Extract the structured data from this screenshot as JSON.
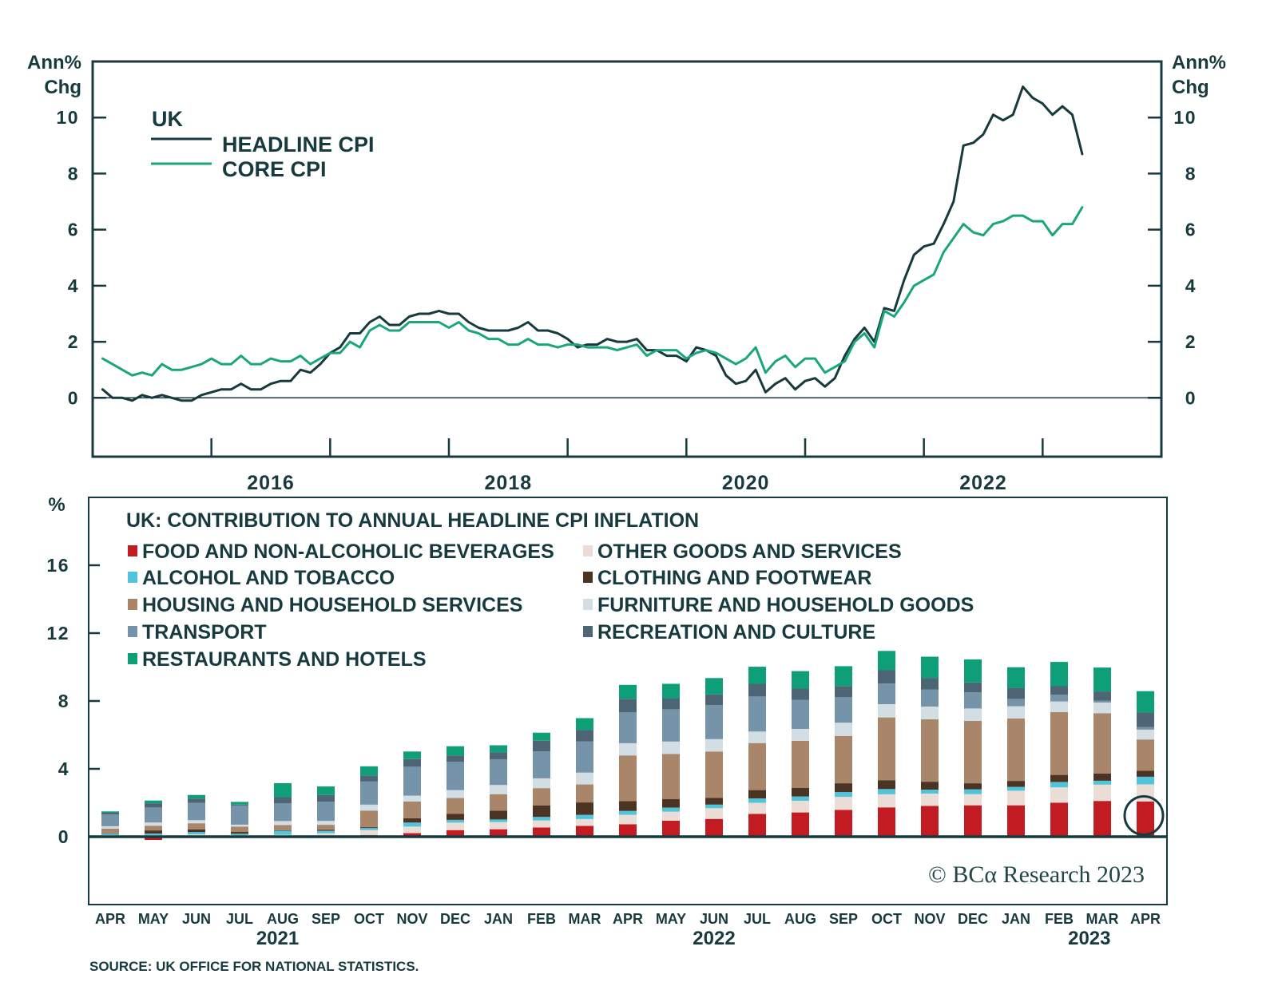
{
  "colors": {
    "ink": "#163a3e"
  },
  "source": "SOURCE: UK OFFICE FOR NATIONAL STATISTICS.",
  "watermark": "© BCα Research 2023",
  "chart_data": [
    {
      "type": "line",
      "title": "UK",
      "ylabel_line1": "Ann%",
      "ylabel_line2": "Chg",
      "ylabel": "Ann% Chg",
      "xlabel": "",
      "x_start": "2015-01",
      "x_end": "2023-04",
      "frequency": "monthly",
      "xlim": [
        "2015-01",
        "2024-01"
      ],
      "ylim": [
        -2.1,
        12
      ],
      "yticks": [
        0,
        2,
        4,
        6,
        8,
        10
      ],
      "xticks": [
        "2016",
        "2017",
        "2018",
        "2019",
        "2020",
        "2021",
        "2022",
        "2023"
      ],
      "xtick_labels": [
        "2016",
        "2018",
        "2020",
        "2022"
      ],
      "grid": false,
      "legend": "top-left",
      "series": [
        {
          "name": "HEADLINE CPI",
          "color": "#163a3e",
          "values": [
            0.3,
            0.0,
            0.0,
            -0.1,
            0.1,
            0.0,
            0.1,
            0.0,
            -0.1,
            -0.1,
            0.1,
            0.2,
            0.3,
            0.3,
            0.5,
            0.3,
            0.3,
            0.5,
            0.6,
            0.6,
            1.0,
            0.9,
            1.2,
            1.6,
            1.8,
            2.3,
            2.3,
            2.7,
            2.9,
            2.6,
            2.6,
            2.9,
            3.0,
            3.0,
            3.1,
            3.0,
            3.0,
            2.7,
            2.5,
            2.4,
            2.4,
            2.4,
            2.5,
            2.7,
            2.4,
            2.4,
            2.3,
            2.1,
            1.8,
            1.9,
            1.9,
            2.1,
            2.0,
            2.0,
            2.1,
            1.7,
            1.7,
            1.5,
            1.5,
            1.3,
            1.8,
            1.7,
            1.5,
            0.8,
            0.5,
            0.6,
            1.0,
            0.2,
            0.5,
            0.7,
            0.3,
            0.6,
            0.7,
            0.4,
            0.7,
            1.5,
            2.1,
            2.5,
            2.0,
            3.2,
            3.1,
            4.2,
            5.1,
            5.4,
            5.5,
            6.2,
            7.0,
            9.0,
            9.1,
            9.4,
            10.1,
            9.9,
            10.1,
            11.1,
            10.7,
            10.5,
            10.1,
            10.4,
            10.1,
            8.7
          ]
        },
        {
          "name": "CORE CPI",
          "color": "#1aa67c",
          "values": [
            1.4,
            1.2,
            1.0,
            0.8,
            0.9,
            0.8,
            1.2,
            1.0,
            1.0,
            1.1,
            1.2,
            1.4,
            1.2,
            1.2,
            1.5,
            1.2,
            1.2,
            1.4,
            1.3,
            1.3,
            1.5,
            1.2,
            1.4,
            1.6,
            1.6,
            2.0,
            1.8,
            2.4,
            2.6,
            2.4,
            2.4,
            2.7,
            2.7,
            2.7,
            2.7,
            2.5,
            2.7,
            2.4,
            2.3,
            2.1,
            2.1,
            1.9,
            1.9,
            2.1,
            1.9,
            1.9,
            1.8,
            1.9,
            1.9,
            1.8,
            1.8,
            1.8,
            1.7,
            1.8,
            1.9,
            1.5,
            1.7,
            1.7,
            1.7,
            1.4,
            1.6,
            1.7,
            1.6,
            1.4,
            1.2,
            1.4,
            1.8,
            0.9,
            1.3,
            1.5,
            1.1,
            1.4,
            1.4,
            0.9,
            1.1,
            1.3,
            2.0,
            2.3,
            1.8,
            3.1,
            2.9,
            3.4,
            4.0,
            4.2,
            4.4,
            5.2,
            5.7,
            6.2,
            5.9,
            5.8,
            6.2,
            6.3,
            6.5,
            6.5,
            6.3,
            6.3,
            5.8,
            6.2,
            6.2,
            6.8
          ]
        }
      ]
    },
    {
      "type": "bar",
      "stacked": true,
      "title": "UK: CONTRIBUTION TO ANNUAL HEADLINE CPI INFLATION",
      "ylabel": "%",
      "xlabel": "",
      "ylim": [
        -4,
        20
      ],
      "yticks": [
        0,
        4,
        8,
        12,
        16
      ],
      "grid": false,
      "legend": "top-left",
      "categories": [
        "APR",
        "MAY",
        "JUN",
        "JUL",
        "AUG",
        "SEP",
        "OCT",
        "NOV",
        "DEC",
        "JAN",
        "FEB",
        "MAR",
        "APR",
        "MAY",
        "JUN",
        "JUL",
        "AUG",
        "SEP",
        "OCT",
        "NOV",
        "DEC",
        "JAN",
        "FEB",
        "MAR",
        "APR"
      ],
      "category_dates": [
        "2021-04",
        "2021-05",
        "2021-06",
        "2021-07",
        "2021-08",
        "2021-09",
        "2021-10",
        "2021-11",
        "2021-12",
        "2022-01",
        "2022-02",
        "2022-03",
        "2022-04",
        "2022-05",
        "2022-06",
        "2022-07",
        "2022-08",
        "2022-09",
        "2022-10",
        "2022-11",
        "2022-12",
        "2023-01",
        "2023-02",
        "2023-03",
        "2023-04"
      ],
      "year_labels": [
        "2021",
        "2022",
        "2023"
      ],
      "highlight": {
        "category_index": 24,
        "series": "FOOD AND NON-ALCOHOLIC BEVERAGES",
        "marker": "circle"
      },
      "stack_order": [
        "FOOD AND NON-ALCOHOLIC BEVERAGES",
        "OTHER GOODS AND SERVICES",
        "ALCOHOL AND TOBACCO",
        "CLOTHING AND FOOTWEAR",
        "HOUSING AND HOUSEHOLD SERVICES",
        "FURNITURE AND HOUSEHOLD GOODS",
        "TRANSPORT",
        "RECREATION AND CULTURE",
        "RESTAURANTS AND HOTELS"
      ],
      "series": [
        {
          "name": "FOOD AND NON-ALCOHOLIC BEVERAGES",
          "color": "#c21b21",
          "values": [
            -0.03,
            -0.19,
            -0.03,
            -0.03,
            0.0,
            0.02,
            0.09,
            0.21,
            0.39,
            0.44,
            0.54,
            0.64,
            0.73,
            0.94,
            1.05,
            1.34,
            1.43,
            1.58,
            1.73,
            1.81,
            1.85,
            1.85,
            2.0,
            2.11,
            2.08
          ]
        },
        {
          "name": "ALCOHOL AND TOBACCO",
          "color": "#4fc4da",
          "values": [
            0.09,
            0.09,
            0.14,
            0.08,
            0.23,
            0.14,
            0.12,
            0.23,
            0.16,
            0.16,
            0.21,
            0.25,
            0.23,
            0.23,
            0.21,
            0.26,
            0.26,
            0.28,
            0.31,
            0.23,
            0.28,
            0.23,
            0.31,
            0.23,
            0.44
          ]
        },
        {
          "name": "HOUSING AND HOUSEHOLD SERVICES",
          "color": "#a98569",
          "values": [
            0.28,
            0.28,
            0.35,
            0.31,
            0.31,
            0.3,
            0.98,
            0.98,
            0.94,
            0.97,
            1.01,
            1.06,
            2.69,
            2.67,
            2.74,
            2.77,
            2.78,
            2.79,
            3.7,
            3.68,
            3.68,
            3.68,
            3.7,
            3.56,
            1.85
          ]
        },
        {
          "name": "TRANSPORT",
          "color": "#7593a9",
          "values": [
            0.68,
            0.87,
            1.01,
            1.13,
            1.05,
            1.14,
            1.36,
            1.72,
            1.66,
            1.5,
            1.59,
            1.83,
            1.83,
            1.9,
            2.0,
            2.06,
            1.72,
            1.5,
            1.22,
            1.01,
            0.94,
            0.42,
            0.4,
            0.11,
            0.16
          ]
        },
        {
          "name": "RESTAURANTS AND HOTELS",
          "color": "#0e9f79",
          "values": [
            0.08,
            0.16,
            0.21,
            0.16,
            0.83,
            0.5,
            0.54,
            0.44,
            0.54,
            0.42,
            0.47,
            0.7,
            0.83,
            0.87,
            0.97,
            1.01,
            1.03,
            1.17,
            1.14,
            1.25,
            1.36,
            1.22,
            1.43,
            1.41,
            1.25
          ]
        },
        {
          "name": "OTHER GOODS AND SERVICES",
          "color": "#e9ddd5",
          "values": [
            0.09,
            0.09,
            0.14,
            0.09,
            0.12,
            0.19,
            0.3,
            0.39,
            0.44,
            0.42,
            0.42,
            0.4,
            0.56,
            0.54,
            0.63,
            0.66,
            0.68,
            0.77,
            0.77,
            0.73,
            0.66,
            0.86,
            0.91,
            0.96,
            1.01
          ]
        },
        {
          "name": "CLOTHING AND FOOTWEAR",
          "color": "#4b3424",
          "values": [
            0.02,
            0.19,
            0.16,
            0.11,
            0.03,
            0.05,
            0.05,
            0.26,
            0.35,
            0.52,
            0.68,
            0.73,
            0.58,
            0.5,
            0.39,
            0.49,
            0.5,
            0.52,
            0.52,
            0.47,
            0.36,
            0.35,
            0.42,
            0.42,
            0.35
          ]
        },
        {
          "name": "FURNITURE AND HOUSEHOLD GOODS",
          "color": "#d3dde4",
          "values": [
            0.14,
            0.19,
            0.19,
            0.12,
            0.23,
            0.23,
            0.35,
            0.35,
            0.47,
            0.54,
            0.58,
            0.7,
            0.72,
            0.73,
            0.73,
            0.68,
            0.7,
            0.78,
            0.78,
            0.75,
            0.73,
            0.72,
            0.63,
            0.63,
            0.58
          ]
        },
        {
          "name": "RECREATION AND CULTURE",
          "color": "#4e6576",
          "values": [
            0.11,
            0.26,
            0.26,
            0.05,
            0.36,
            0.39,
            0.36,
            0.44,
            0.38,
            0.42,
            0.63,
            0.68,
            0.78,
            0.63,
            0.63,
            0.75,
            0.66,
            0.66,
            0.78,
            0.68,
            0.59,
            0.66,
            0.5,
            0.54,
            0.86
          ]
        }
      ]
    }
  ]
}
